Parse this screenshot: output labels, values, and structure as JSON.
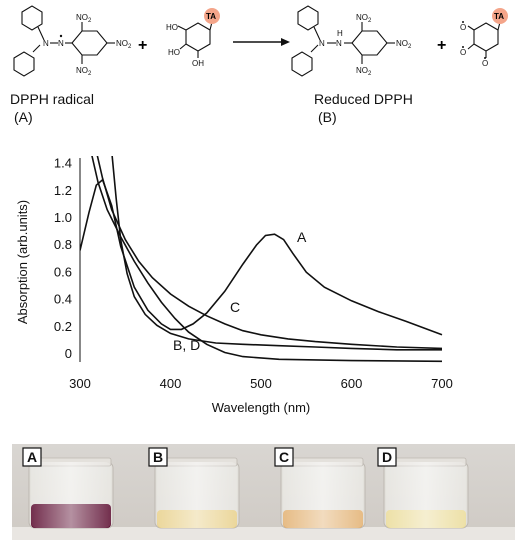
{
  "reaction": {
    "reactant_label": "DPPH radical",
    "reactant_tag": "(A)",
    "product_label": "Reduced DPPH",
    "product_tag": "(B)",
    "plus": "+",
    "ta_badge": "TA",
    "no2": "NO",
    "no2_sub": "2",
    "nh": "H",
    "n": "N",
    "ho": "HO",
    "oh": "OH",
    "o": "O",
    "badge_color": "#f4a58a"
  },
  "chart_data": {
    "type": "line",
    "xlabel": "Wavelength (nm)",
    "ylabel": "Absorption (arb.units)",
    "xlim": [
      300,
      700
    ],
    "ylim": [
      0,
      1.5
    ],
    "x_ticks": [
      "300",
      "400",
      "500",
      "600",
      "700"
    ],
    "y_ticks": [
      "0",
      "0.2",
      "0.4",
      "0.6",
      "0.8",
      "1.0",
      "1.2",
      "1.4"
    ],
    "grid": false,
    "series": [
      {
        "name": "A",
        "points": [
          [
            300,
            0.82
          ],
          [
            310,
            1.1
          ],
          [
            318,
            1.3
          ],
          [
            325,
            1.34
          ],
          [
            335,
            1.15
          ],
          [
            345,
            0.85
          ],
          [
            360,
            0.55
          ],
          [
            375,
            0.38
          ],
          [
            390,
            0.28
          ],
          [
            400,
            0.24
          ],
          [
            412,
            0.24
          ],
          [
            425,
            0.28
          ],
          [
            440,
            0.36
          ],
          [
            460,
            0.52
          ],
          [
            480,
            0.72
          ],
          [
            495,
            0.86
          ],
          [
            505,
            0.93
          ],
          [
            515,
            0.94
          ],
          [
            525,
            0.9
          ],
          [
            535,
            0.8
          ],
          [
            550,
            0.66
          ],
          [
            570,
            0.55
          ],
          [
            600,
            0.45
          ],
          [
            630,
            0.37
          ],
          [
            660,
            0.3
          ],
          [
            700,
            0.2
          ]
        ]
      },
      {
        "name": "C",
        "points": [
          [
            318,
            1.55
          ],
          [
            325,
            1.35
          ],
          [
            335,
            1.12
          ],
          [
            350,
            0.9
          ],
          [
            365,
            0.74
          ],
          [
            380,
            0.62
          ],
          [
            400,
            0.5
          ],
          [
            420,
            0.41
          ],
          [
            440,
            0.34
          ],
          [
            460,
            0.28
          ],
          [
            480,
            0.23
          ],
          [
            500,
            0.2
          ],
          [
            530,
            0.17
          ],
          [
            560,
            0.15
          ],
          [
            600,
            0.13
          ],
          [
            650,
            0.11
          ],
          [
            700,
            0.1
          ]
        ]
      },
      {
        "name": "B, D",
        "points": [
          [
            312,
            1.55
          ],
          [
            320,
            1.32
          ],
          [
            330,
            1.12
          ],
          [
            345,
            0.92
          ],
          [
            360,
            0.74
          ],
          [
            375,
            0.58
          ],
          [
            390,
            0.44
          ],
          [
            405,
            0.32
          ],
          [
            420,
            0.22
          ],
          [
            440,
            0.13
          ],
          [
            460,
            0.07
          ],
          [
            480,
            0.04
          ],
          [
            520,
            0.02
          ],
          [
            600,
            0.01
          ],
          [
            700,
            0.005
          ]
        ]
      },
      {
        "name": "",
        "points": [
          [
            335,
            1.55
          ],
          [
            340,
            1.2
          ],
          [
            345,
            0.9
          ],
          [
            352,
            0.65
          ],
          [
            360,
            0.48
          ],
          [
            372,
            0.35
          ],
          [
            385,
            0.27
          ],
          [
            400,
            0.21
          ],
          [
            420,
            0.17
          ],
          [
            450,
            0.14
          ],
          [
            480,
            0.13
          ],
          [
            520,
            0.12
          ],
          [
            560,
            0.11
          ],
          [
            600,
            0.1
          ],
          [
            650,
            0.09
          ],
          [
            700,
            0.09
          ]
        ]
      }
    ],
    "curve_labels": [
      "A",
      "C",
      "B, D"
    ]
  },
  "photo": {
    "labels": [
      "A",
      "B",
      "C",
      "D"
    ],
    "liquid_colors": [
      "#5a0a2e",
      "#e8d08a",
      "#e2b070",
      "#eadb98"
    ]
  }
}
